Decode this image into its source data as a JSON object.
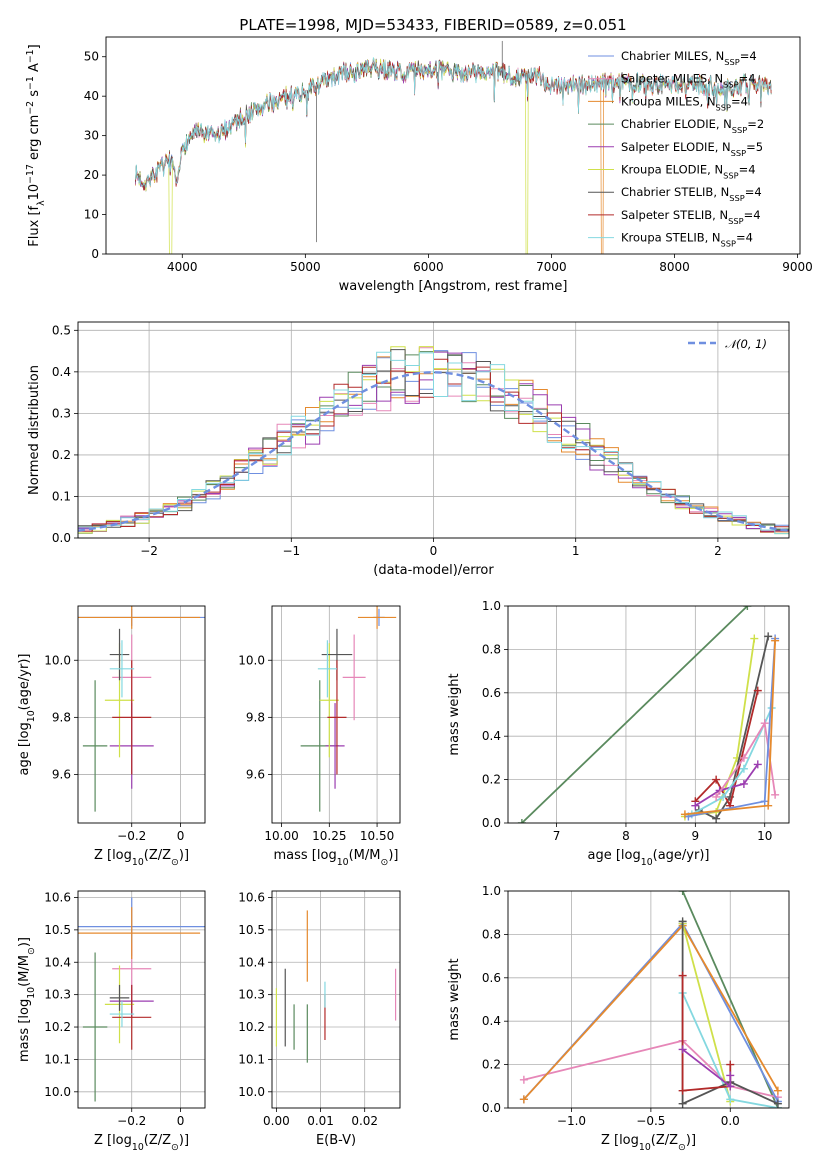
{
  "title": "PLATE=1998, MJD=53433, FIBERID=0589, z=0.051",
  "colors": {
    "chabrier_miles": "#6f8fe0",
    "salpeter_miles": "#e687b8",
    "kroupa_miles": "#e58a2e",
    "chabrier_elodie": "#5a8a5e",
    "salpeter_elodie": "#9b3db0",
    "kroupa_elodie": "#cfe04a",
    "chabrier_stelib": "#555555",
    "salpeter_stelib": "#b22a2a",
    "kroupa_stelib": "#84d8e0",
    "normal_curve": "#6f8fe0"
  },
  "chart_data": [
    {
      "id": "spectrum",
      "type": "line",
      "title": "PLATE=1998, MJD=53433, FIBERID=0589, z=0.051",
      "xlabel": "wavelength [Angstrom, rest frame]",
      "ylabel_parts": [
        "Flux [f",
        "λ",
        "10",
        "−17",
        " erg cm",
        "−2",
        " s",
        "−1",
        " A",
        "−1",
        "]"
      ],
      "xlim": [
        3380,
        9020
      ],
      "ylim": [
        0,
        55
      ],
      "xticks": [
        4000,
        5000,
        6000,
        7000,
        8000,
        9000
      ],
      "yticks": [
        0,
        10,
        20,
        30,
        40,
        50
      ],
      "grid": false,
      "legend_position": "top-right",
      "x_range_data": [
        3620,
        8790
      ],
      "legend": [
        {
          "imf": "Chabrier MILES, N",
          "sub": "SSP",
          "eq": "=4",
          "color_key": "chabrier_miles"
        },
        {
          "imf": "Salpeter MILES, N",
          "sub": "SSP",
          "eq": "=4",
          "color_key": "salpeter_miles"
        },
        {
          "imf": "Kroupa MILES, N",
          "sub": "SSP",
          "eq": "=4",
          "color_key": "kroupa_miles"
        },
        {
          "imf": "Chabrier ELODIE, N",
          "sub": "SSP",
          "eq": "=2",
          "color_key": "chabrier_elodie"
        },
        {
          "imf": "Salpeter ELODIE, N",
          "sub": "SSP",
          "eq": "=5",
          "color_key": "salpeter_elodie"
        },
        {
          "imf": "Kroupa ELODIE, N",
          "sub": "SSP",
          "eq": "=4",
          "color_key": "kroupa_elodie"
        },
        {
          "imf": "Chabrier STELIB, N",
          "sub": "SSP",
          "eq": "=4",
          "color_key": "chabrier_stelib"
        },
        {
          "imf": "Salpeter STELIB, N",
          "sub": "SSP",
          "eq": "=4",
          "color_key": "salpeter_stelib"
        },
        {
          "imf": "Kroupa STELIB, N",
          "sub": "SSP",
          "eq": "=4",
          "color_key": "kroupa_stelib"
        }
      ],
      "envelope": [
        [
          3620,
          20
        ],
        [
          3700,
          18
        ],
        [
          3800,
          21
        ],
        [
          3900,
          24
        ],
        [
          3960,
          17
        ],
        [
          4000,
          27
        ],
        [
          4100,
          31
        ],
        [
          4200,
          30
        ],
        [
          4300,
          30
        ],
        [
          4400,
          33
        ],
        [
          4500,
          35
        ],
        [
          4700,
          38
        ],
        [
          4860,
          40
        ],
        [
          5000,
          41
        ],
        [
          5100,
          43
        ],
        [
          5200,
          44
        ],
        [
          5300,
          46
        ],
        [
          5400,
          46
        ],
        [
          5500,
          47
        ],
        [
          5600,
          47
        ],
        [
          5800,
          46
        ],
        [
          6000,
          47
        ],
        [
          6200,
          46
        ],
        [
          6400,
          46
        ],
        [
          6560,
          46
        ],
        [
          6700,
          45
        ],
        [
          6900,
          45
        ],
        [
          7000,
          43
        ],
        [
          7200,
          43
        ],
        [
          7400,
          43
        ],
        [
          7600,
          44
        ],
        [
          7800,
          43
        ],
        [
          8000,
          43
        ],
        [
          8200,
          43
        ],
        [
          8400,
          42
        ],
        [
          8600,
          43
        ],
        [
          8790,
          43
        ]
      ]
    },
    {
      "id": "residuals",
      "type": "histogram",
      "xlabel": "(data-model)/error",
      "ylabel": "Normed distribution",
      "xlim": [
        -2.5,
        2.5
      ],
      "ylim": [
        0,
        0.52
      ],
      "xticks": [
        -2,
        -1,
        0,
        1,
        2
      ],
      "yticks": [
        0.0,
        0.1,
        0.2,
        0.3,
        0.4,
        0.5
      ],
      "grid": true,
      "legend_position": "top-right",
      "curve_label": "𝒩(0, 1)",
      "bin_width": 0.1
    },
    {
      "id": "age_vs_Z",
      "type": "scatter",
      "xlabel_parts": [
        "Z [log",
        "10",
        "(Z/Z",
        "⊙",
        ")]"
      ],
      "ylabel_parts": [
        "age  [log",
        "10",
        "(age/yr)]"
      ],
      "xlim": [
        -0.42,
        0.1
      ],
      "ylim": [
        9.43,
        10.19
      ],
      "xticks": [
        -0.2,
        0.0
      ],
      "yticks": [
        9.6,
        9.8,
        10.0
      ],
      "grid": true,
      "points": [
        {
          "color_key": "chabrier_miles",
          "x": -0.2,
          "xerr": 0.3,
          "y": 10.15,
          "yerr": 0.03
        },
        {
          "color_key": "salpeter_miles",
          "x": -0.2,
          "xerr": 0.08,
          "y": 9.94,
          "yerr": 0.15
        },
        {
          "color_key": "kroupa_miles",
          "x": -0.2,
          "xerr": 0.28,
          "y": 10.15,
          "yerr": 0.04
        },
        {
          "color_key": "chabrier_elodie",
          "x": -0.35,
          "xerr": 0.05,
          "y": 9.7,
          "yerr": 0.23
        },
        {
          "color_key": "salpeter_elodie",
          "x": -0.2,
          "xerr": 0.09,
          "y": 9.7,
          "yerr": 0.15
        },
        {
          "color_key": "kroupa_elodie",
          "x": -0.25,
          "xerr": 0.06,
          "y": 9.86,
          "yerr": 0.2
        },
        {
          "color_key": "chabrier_stelib",
          "x": -0.25,
          "xerr": 0.04,
          "y": 10.02,
          "yerr": 0.09
        },
        {
          "color_key": "salpeter_stelib",
          "x": -0.2,
          "xerr": 0.08,
          "y": 9.8,
          "yerr": 0.2
        },
        {
          "color_key": "kroupa_stelib",
          "x": -0.24,
          "xerr": 0.05,
          "y": 9.97,
          "yerr": 0.1
        }
      ]
    },
    {
      "id": "age_vs_mass",
      "type": "scatter",
      "xlabel_parts": [
        "mass [log",
        "10",
        "(M/M",
        "⊙",
        ")]"
      ],
      "ylabel": "",
      "xlim": [
        9.95,
        10.62
      ],
      "ylim": [
        9.43,
        10.19
      ],
      "xticks": [
        10.0,
        10.25,
        10.5
      ],
      "xtick_labels": [
        "10.00",
        "10.25",
        "10.50"
      ],
      "yticks": [
        9.6,
        9.8,
        10.0
      ],
      "grid": true,
      "points": [
        {
          "color_key": "chabrier_miles",
          "x": 10.51,
          "xerr": 0.03,
          "y": 10.15,
          "yerr": 0.03
        },
        {
          "color_key": "salpeter_miles",
          "x": 10.38,
          "xerr": 0.06,
          "y": 9.94,
          "yerr": 0.15
        },
        {
          "color_key": "kroupa_miles",
          "x": 10.5,
          "xerr": 0.1,
          "y": 10.15,
          "yerr": 0.04
        },
        {
          "color_key": "chabrier_elodie",
          "x": 10.2,
          "xerr": 0.1,
          "y": 9.7,
          "yerr": 0.23
        },
        {
          "color_key": "salpeter_elodie",
          "x": 10.28,
          "xerr": 0.05,
          "y": 9.7,
          "yerr": 0.15
        },
        {
          "color_key": "kroupa_elodie",
          "x": 10.25,
          "xerr": 0.05,
          "y": 9.86,
          "yerr": 0.2
        },
        {
          "color_key": "chabrier_stelib",
          "x": 10.29,
          "xerr": 0.08,
          "y": 10.02,
          "yerr": 0.09
        },
        {
          "color_key": "salpeter_stelib",
          "x": 10.29,
          "xerr": 0.05,
          "y": 9.8,
          "yerr": 0.2
        },
        {
          "color_key": "kroupa_stelib",
          "x": 10.24,
          "xerr": 0.05,
          "y": 9.97,
          "yerr": 0.1
        }
      ]
    },
    {
      "id": "weight_vs_age",
      "type": "line",
      "xlabel_parts": [
        "age  [log",
        "10",
        "(age/yr)]"
      ],
      "ylabel": "mass weight",
      "xlim": [
        6.3,
        10.35
      ],
      "ylim": [
        0,
        1.0
      ],
      "xticks": [
        7,
        8,
        9,
        10
      ],
      "yticks": [
        0.0,
        0.2,
        0.4,
        0.6,
        0.8,
        1.0
      ],
      "grid": true,
      "series": [
        {
          "color_key": "chabrier_elodie",
          "x": [
            6.5,
            9.75
          ],
          "y": [
            0.0,
            1.0
          ]
        },
        {
          "color_key": "kroupa_elodie",
          "x": [
            8.85,
            9.3,
            9.6,
            9.85
          ],
          "y": [
            0.03,
            0.05,
            0.3,
            0.85
          ]
        },
        {
          "color_key": "chabrier_stelib",
          "x": [
            9.05,
            9.3,
            9.5,
            10.05
          ],
          "y": [
            0.06,
            0.02,
            0.12,
            0.86
          ]
        },
        {
          "color_key": "salpeter_stelib",
          "x": [
            9.0,
            9.3,
            9.5,
            9.9
          ],
          "y": [
            0.1,
            0.2,
            0.08,
            0.61
          ]
        },
        {
          "color_key": "salpeter_elodie",
          "x": [
            9.0,
            9.35,
            9.7,
            9.9
          ],
          "y": [
            0.08,
            0.15,
            0.18,
            0.27
          ]
        },
        {
          "color_key": "kroupa_stelib",
          "x": [
            8.95,
            9.4,
            9.7,
            10.1
          ],
          "y": [
            0.04,
            0.12,
            0.25,
            0.53
          ]
        },
        {
          "color_key": "salpeter_miles",
          "x": [
            9.3,
            9.7,
            10.0,
            10.15
          ],
          "y": [
            0.12,
            0.3,
            0.46,
            0.13
          ]
        },
        {
          "color_key": "chabrier_miles",
          "x": [
            8.9,
            10.0,
            10.15
          ],
          "y": [
            0.03,
            0.1,
            0.85
          ]
        },
        {
          "color_key": "kroupa_miles",
          "x": [
            8.85,
            10.05,
            10.15
          ],
          "y": [
            0.04,
            0.08,
            0.84
          ]
        }
      ]
    },
    {
      "id": "mass_vs_Z",
      "type": "scatter",
      "xlabel_parts": [
        "Z [log",
        "10",
        "(Z/Z",
        "⊙",
        ")]"
      ],
      "ylabel_parts": [
        "mass [log",
        "10",
        "(M/M",
        "⊙",
        ")]"
      ],
      "xlim": [
        -0.42,
        0.1
      ],
      "ylim": [
        9.95,
        10.62
      ],
      "xticks": [
        -0.2,
        0.0
      ],
      "yticks": [
        10.0,
        10.1,
        10.2,
        10.3,
        10.4,
        10.5,
        10.6
      ],
      "grid": true,
      "points": [
        {
          "color_key": "chabrier_miles",
          "x": -0.2,
          "xerr": 0.3,
          "y": 10.51,
          "yerr": 0.09
        },
        {
          "color_key": "salpeter_miles",
          "x": -0.2,
          "xerr": 0.08,
          "y": 10.38,
          "yerr": 0.08
        },
        {
          "color_key": "kroupa_miles",
          "x": -0.2,
          "xerr": 0.28,
          "y": 10.49,
          "yerr": 0.08
        },
        {
          "color_key": "chabrier_elodie",
          "x": -0.35,
          "xerr": 0.05,
          "y": 10.2,
          "yerr": 0.23
        },
        {
          "color_key": "salpeter_elodie",
          "x": -0.2,
          "xerr": 0.09,
          "y": 10.28,
          "yerr": 0.05
        },
        {
          "color_key": "kroupa_elodie",
          "x": -0.25,
          "xerr": 0.06,
          "y": 10.27,
          "yerr": 0.12
        },
        {
          "color_key": "chabrier_stelib",
          "x": -0.25,
          "xerr": 0.04,
          "y": 10.29,
          "yerr": 0.04
        },
        {
          "color_key": "salpeter_stelib",
          "x": -0.2,
          "xerr": 0.08,
          "y": 10.23,
          "yerr": 0.1
        },
        {
          "color_key": "kroupa_stelib",
          "x": -0.24,
          "xerr": 0.05,
          "y": 10.24,
          "yerr": 0.04
        }
      ]
    },
    {
      "id": "mass_vs_ebv",
      "type": "scatter",
      "xlabel": "E(B-V)",
      "ylabel": "",
      "xlim": [
        -0.001,
        0.028
      ],
      "ylim": [
        9.95,
        10.62
      ],
      "xticks": [
        0.0,
        0.01,
        0.02
      ],
      "xtick_labels": [
        "0.00",
        "0.01",
        "0.02"
      ],
      "yticks": [
        10.0,
        10.1,
        10.2,
        10.3,
        10.4,
        10.5,
        10.6
      ],
      "grid": true,
      "points": [
        {
          "color_key": "kroupa_elodie",
          "x": 0.0,
          "xerr": 0,
          "y": 10.23,
          "yerr": 0.09
        },
        {
          "color_key": "chabrier_stelib",
          "x": 0.002,
          "xerr": 0,
          "y": 10.26,
          "yerr": 0.12
        },
        {
          "color_key": "chabrier_elodie",
          "x": 0.004,
          "xerr": 0,
          "y": 10.2,
          "yerr": 0.07
        },
        {
          "color_key": "kroupa_miles",
          "x": 0.007,
          "xerr": 0,
          "y": 10.45,
          "yerr": 0.11
        },
        {
          "color_key": "chabrier_elodie",
          "x": 0.007,
          "xerr": 0,
          "y": 10.18,
          "yerr": 0.09
        },
        {
          "color_key": "salpeter_stelib",
          "x": 0.011,
          "xerr": 0,
          "y": 10.23,
          "yerr": 0.07
        },
        {
          "color_key": "kroupa_stelib",
          "x": 0.011,
          "xerr": 0,
          "y": 10.3,
          "yerr": 0.04
        },
        {
          "color_key": "salpeter_miles",
          "x": 0.027,
          "xerr": 0,
          "y": 10.3,
          "yerr": 0.08
        }
      ]
    },
    {
      "id": "weight_vs_Z",
      "type": "line",
      "xlabel_parts": [
        "Z [log",
        "10",
        "(Z/Z",
        "⊙",
        ")]"
      ],
      "ylabel": "mass weight",
      "xlim": [
        -1.4,
        0.37
      ],
      "ylim": [
        0,
        1.0
      ],
      "xticks": [
        -1.0,
        -0.5,
        0.0
      ],
      "xtick_labels": [
        "−1.0",
        "−0.5",
        "0.0"
      ],
      "yticks": [
        0.0,
        0.2,
        0.4,
        0.6,
        0.8,
        1.0
      ],
      "grid": true,
      "series": [
        {
          "color_key": "chabrier_elodie",
          "x": [
            -0.3,
            0.3
          ],
          "y": [
            1.0,
            0.0
          ]
        },
        {
          "color_key": "salpeter_miles",
          "x": [
            -1.3,
            -0.3,
            0.0,
            0.3
          ],
          "y": [
            0.13,
            0.31,
            0.1,
            0.05
          ]
        },
        {
          "color_key": "chabrier_miles",
          "x": [
            -1.3,
            -0.3,
            0.3
          ],
          "y": [
            0.04,
            0.85,
            0.03
          ]
        },
        {
          "color_key": "kroupa_miles",
          "x": [
            -1.3,
            -0.3,
            0.3
          ],
          "y": [
            0.04,
            0.84,
            0.08
          ]
        },
        {
          "color_key": "kroupa_elodie",
          "x": [
            -0.3,
            0.0
          ],
          "y": [
            0.85,
            0.03
          ]
        },
        {
          "color_key": "kroupa_stelib",
          "x": [
            -0.3,
            0.0,
            0.3
          ],
          "y": [
            0.53,
            0.04,
            0.0
          ]
        },
        {
          "color_key": "chabrier_stelib",
          "x": [
            -0.3,
            -0.3,
            0.0,
            0.3
          ],
          "y": [
            0.86,
            0.02,
            0.12,
            0.02
          ]
        },
        {
          "color_key": "salpeter_stelib",
          "x": [
            -0.3,
            -0.3,
            0.0,
            0.0
          ],
          "y": [
            0.61,
            0.08,
            0.1,
            0.2
          ]
        },
        {
          "color_key": "salpeter_elodie",
          "x": [
            -0.3,
            0.0,
            0.0
          ],
          "y": [
            0.27,
            0.1,
            0.15
          ]
        }
      ]
    }
  ]
}
